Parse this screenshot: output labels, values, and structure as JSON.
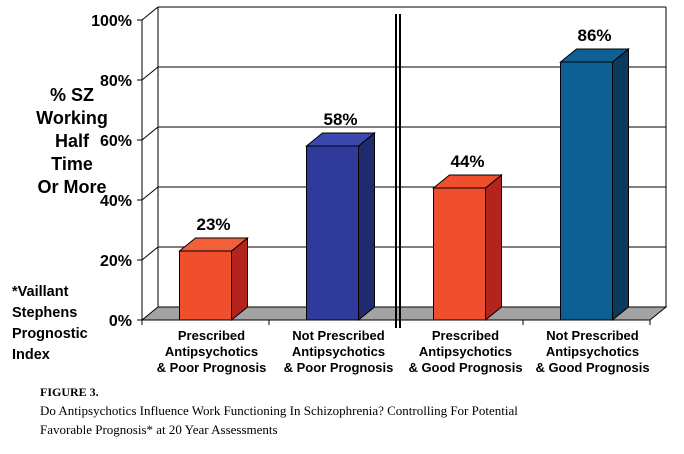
{
  "chart_data": {
    "type": "bar",
    "categories": [
      [
        "Prescribed",
        "Antipsychotics",
        "& Poor Prognosis"
      ],
      [
        "Not Prescribed",
        "Antipsychotics",
        "& Poor Prognosis"
      ],
      [
        "Prescribed",
        "Antipsychotics",
        "& Good Prognosis"
      ],
      [
        "Not Prescribed",
        "Antipsychotics",
        "& Good Prognosis"
      ]
    ],
    "values": [
      23,
      58,
      44,
      86
    ],
    "data_labels": [
      "23%",
      "58%",
      "44%",
      "86%"
    ],
    "ylabel_lines": [
      "% SZ",
      "Working",
      "Half",
      "Time",
      "Or More"
    ],
    "yticks": [
      "0%",
      "20%",
      "40%",
      "60%",
      "80%",
      "100%"
    ],
    "ylim": [
      0,
      100
    ],
    "grid": true,
    "style": "3d",
    "divider_between": [
      1,
      2
    ],
    "colors": {
      "bar_front": [
        "#ef4f2c",
        "#2f3a9a",
        "#ef4f2c",
        "#0e5f94"
      ],
      "bar_side": [
        "#b5231f",
        "#202a6f",
        "#b5231f",
        "#0a3a5c"
      ],
      "bar_top": [
        "#f2603a",
        "#3b48ad",
        "#ef4f2c",
        "#0e5f94"
      ],
      "floor": "#a3a3a3"
    }
  },
  "note": [
    "*Vaillant",
    "Stephens",
    "Prognostic",
    "Index"
  ],
  "caption": {
    "figure_label": "FIGURE 3.",
    "line1": "Do Antipsychotics Influence Work Functioning In Schizophrenia? Controlling For Potential",
    "line2": "Favorable Prognosis* at 20 Year Assessments"
  }
}
